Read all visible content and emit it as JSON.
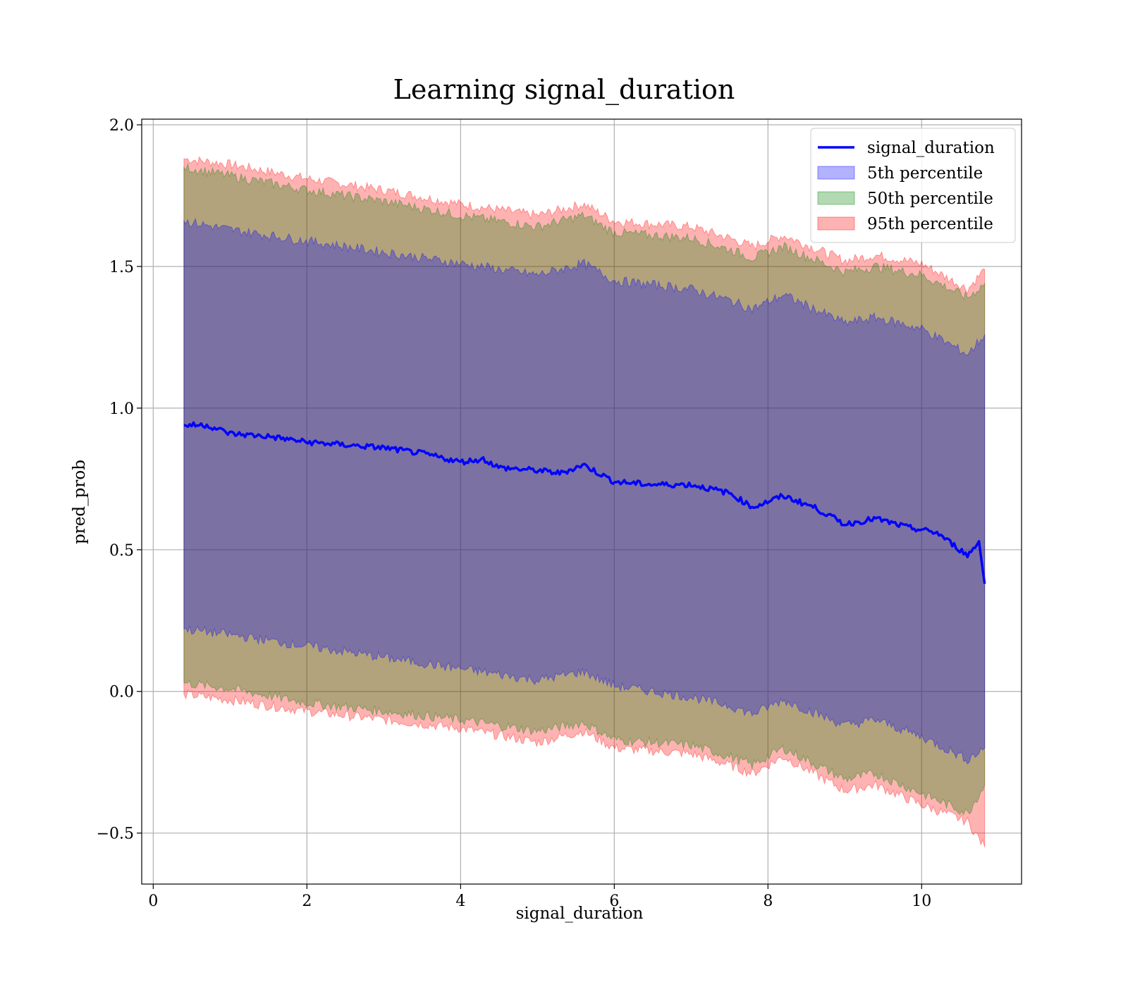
{
  "chart_data": {
    "type": "line",
    "title": "Learning signal_duration",
    "xlabel": "signal_duration",
    "ylabel": "pred_prob",
    "xlim": [
      -0.15,
      11.3
    ],
    "ylim": [
      -0.68,
      2.02
    ],
    "xticks": [
      0,
      2,
      4,
      6,
      8,
      10
    ],
    "yticks": [
      -0.5,
      0.0,
      0.5,
      1.0,
      1.5,
      2.0
    ],
    "ytick_labels": [
      "−0.5",
      "0.0",
      "0.5",
      "1.0",
      "1.5",
      "2.0"
    ],
    "grid": true,
    "legend_position": "top-right",
    "line": {
      "name": "signal_duration",
      "color": "#0000ff",
      "x": [
        0.4,
        0.7,
        1.0,
        1.5,
        2.0,
        2.5,
        3.0,
        3.5,
        4.0,
        4.3,
        4.5,
        5.0,
        5.3,
        5.6,
        6.0,
        6.5,
        7.0,
        7.5,
        7.8,
        8.2,
        8.6,
        9.0,
        9.4,
        9.8,
        10.2,
        10.6,
        10.75,
        10.82
      ],
      "y": [
        0.94,
        0.94,
        0.91,
        0.9,
        0.88,
        0.87,
        0.86,
        0.84,
        0.81,
        0.82,
        0.79,
        0.78,
        0.77,
        0.8,
        0.74,
        0.73,
        0.73,
        0.7,
        0.65,
        0.69,
        0.65,
        0.59,
        0.61,
        0.58,
        0.56,
        0.48,
        0.53,
        0.38
      ]
    },
    "bands": [
      {
        "name": "95th percentile",
        "color": "#ff0000",
        "x": [
          0.4,
          1.0,
          2.0,
          3.0,
          4.0,
          5.0,
          5.6,
          6.0,
          7.0,
          7.5,
          7.8,
          8.2,
          9.0,
          9.4,
          10.0,
          10.6,
          10.82
        ],
        "lower": [
          -0.01,
          -0.03,
          -0.07,
          -0.1,
          -0.13,
          -0.18,
          -0.14,
          -0.2,
          -0.22,
          -0.26,
          -0.29,
          -0.23,
          -0.35,
          -0.33,
          -0.4,
          -0.46,
          -0.55
        ],
        "upper": [
          1.88,
          1.86,
          1.81,
          1.77,
          1.72,
          1.68,
          1.72,
          1.66,
          1.64,
          1.6,
          1.57,
          1.61,
          1.52,
          1.54,
          1.51,
          1.42,
          1.49
        ]
      },
      {
        "name": "50th percentile",
        "color": "#008000",
        "x": [
          0.4,
          1.0,
          2.0,
          3.0,
          4.0,
          5.0,
          5.6,
          6.0,
          7.0,
          7.5,
          7.8,
          8.2,
          9.0,
          9.4,
          10.0,
          10.6,
          10.82
        ],
        "lower": [
          0.03,
          0.01,
          -0.04,
          -0.07,
          -0.1,
          -0.14,
          -0.11,
          -0.17,
          -0.19,
          -0.23,
          -0.26,
          -0.2,
          -0.31,
          -0.29,
          -0.36,
          -0.43,
          -0.33
        ],
        "upper": [
          1.85,
          1.82,
          1.77,
          1.73,
          1.68,
          1.64,
          1.68,
          1.62,
          1.6,
          1.56,
          1.53,
          1.57,
          1.48,
          1.5,
          1.47,
          1.39,
          1.44
        ]
      },
      {
        "name": "5th percentile",
        "color": "#0000ff",
        "x": [
          0.4,
          1.0,
          2.0,
          3.0,
          4.0,
          5.0,
          5.6,
          6.0,
          7.0,
          7.5,
          7.8,
          8.2,
          9.0,
          9.4,
          10.0,
          10.6,
          10.82
        ],
        "lower": [
          0.22,
          0.2,
          0.16,
          0.12,
          0.08,
          0.04,
          0.07,
          0.02,
          -0.02,
          -0.05,
          -0.08,
          -0.03,
          -0.12,
          -0.1,
          -0.16,
          -0.24,
          -0.2
        ],
        "upper": [
          1.66,
          1.63,
          1.59,
          1.55,
          1.51,
          1.47,
          1.51,
          1.45,
          1.42,
          1.38,
          1.35,
          1.4,
          1.3,
          1.32,
          1.28,
          1.19,
          1.26
        ]
      }
    ],
    "legend": [
      {
        "label": "signal_duration",
        "kind": "line",
        "color": "#0000ff"
      },
      {
        "label": "5th percentile",
        "kind": "patch",
        "color": "#0000ff"
      },
      {
        "label": "50th percentile",
        "kind": "patch",
        "color": "#008000"
      },
      {
        "label": "95th percentile",
        "kind": "patch",
        "color": "#ff0000"
      }
    ]
  }
}
